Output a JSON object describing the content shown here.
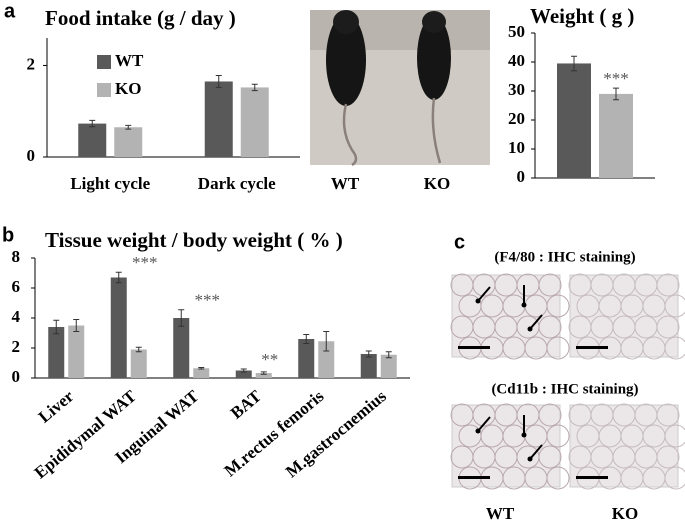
{
  "panel_labels": [
    "a",
    "b",
    "c"
  ],
  "photo": {
    "labels": [
      "WT",
      "KO"
    ]
  },
  "ihc": {
    "titles": [
      "(F4/80 : IHC staining)",
      "(Cd11b : IHC staining)"
    ],
    "labels": [
      "WT",
      "KO"
    ]
  },
  "chart_data": [
    {
      "type": "bar",
      "title": "Food intake (g / day )",
      "categories": [
        "Light cycle",
        "Dark cycle"
      ],
      "series": [
        {
          "name": "WT",
          "color": "#595959",
          "values": [
            0.73,
            1.65
          ],
          "errors": [
            0.07,
            0.13
          ]
        },
        {
          "name": "KO",
          "color": "#b3b3b3",
          "values": [
            0.65,
            1.52
          ],
          "errors": [
            0.04,
            0.07
          ]
        }
      ],
      "ylim": [
        0,
        2.6
      ],
      "yticks": [
        0,
        2
      ],
      "legend": "upper left"
    },
    {
      "type": "bar",
      "title": "Weight ( g )",
      "categories": [
        null
      ],
      "series": [
        {
          "color": "#595959",
          "values": [
            39.5
          ],
          "errors": [
            2.5
          ]
        },
        {
          "color": "#b3b3b3",
          "values": [
            29
          ],
          "errors": [
            2
          ],
          "significance": [
            "***"
          ]
        }
      ],
      "ylim": [
        0,
        50
      ],
      "yticks": [
        0,
        10,
        20,
        30,
        40,
        50
      ]
    },
    {
      "type": "bar",
      "title": "Tissue weight / body weight ( % )",
      "categories": [
        "Liver",
        "Epididymal WAT",
        "Inguinal WAT",
        "BAT",
        "M.rectus femoris",
        "M.gastrocnemius"
      ],
      "series": [
        {
          "color": "#595959",
          "values": [
            3.4,
            6.7,
            4.0,
            0.5,
            2.6,
            1.6
          ],
          "errors": [
            0.45,
            0.35,
            0.55,
            0.1,
            0.3,
            0.2
          ]
        },
        {
          "color": "#b3b3b3",
          "values": [
            3.5,
            1.9,
            0.65,
            0.33,
            2.45,
            1.55
          ],
          "errors": [
            0.4,
            0.15,
            0.05,
            0.08,
            0.65,
            0.2
          ],
          "significance": [
            null,
            "***",
            "***",
            "**",
            null,
            null
          ]
        }
      ],
      "ylim": [
        0,
        8
      ],
      "yticks": [
        0,
        2,
        4,
        6,
        8
      ]
    }
  ]
}
